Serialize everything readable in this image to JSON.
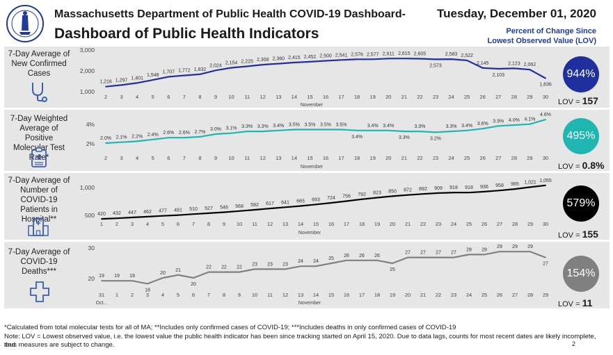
{
  "header": {
    "title_line1": "Massachusetts Department of Public Health COVID-19 Dashboard-",
    "title_line2": "Dashboard of Public Health Indicators",
    "date": "Tuesday, December 01, 2020",
    "pct_change_line1": "Percent of Change Since",
    "pct_change_line2": "Lowest Observed Value (LOV)"
  },
  "colors": {
    "cases": "#1f2f9e",
    "positivity": "#1fb5b0",
    "hospital": "#000000",
    "deaths": "#808080"
  },
  "chart_data": [
    {
      "type": "line",
      "label": "7-Day Average of New Confirmed Cases",
      "icon": "stethoscope-icon",
      "x": [
        "2",
        "3",
        "4",
        "5",
        "6",
        "7",
        "8",
        "9",
        "10",
        "11",
        "12",
        "13",
        "14",
        "15",
        "16",
        "17",
        "18",
        "19",
        "20",
        "21",
        "22",
        "23",
        "24",
        "25",
        "26",
        "27",
        "28",
        "29",
        "30"
      ],
      "values": [
        1216,
        1297,
        1401,
        1548,
        1707,
        1772,
        1832,
        2024,
        2154,
        2225,
        2308,
        2360,
        2415,
        2452,
        2500,
        2541,
        2576,
        2577,
        2611,
        2615,
        2605,
        2573,
        2583,
        2522,
        2145,
        2103,
        2123,
        2062,
        1636
      ],
      "value_labels": [
        "1,216",
        "1,297",
        "1,401",
        "1,548",
        "1,707",
        "1,772",
        "1,832",
        "2,024",
        "2,154",
        "2,225",
        "2,308",
        "2,360",
        "2,415",
        "2,452",
        "2,500",
        "2,541",
        "2,576",
        "2,577",
        "2,611",
        "2,615",
        "2,605",
        "2,573",
        "2,583",
        "2,522",
        "2,145",
        "2,103",
        "2,123",
        "2,062",
        "1,636"
      ],
      "yticks": [
        "3,000",
        "2,000",
        "1,000"
      ],
      "ylim": [
        1000,
        3000
      ],
      "month_label": "November",
      "pct_change": "944%",
      "lov_label": "LOV =",
      "lov_value": "157"
    },
    {
      "type": "line",
      "label": "7-Day Weighted Average of Positive Molecular Test Rate*",
      "icon": "clipboard-icon",
      "x": [
        "2",
        "3",
        "4",
        "5",
        "6",
        "7",
        "8",
        "9",
        "10",
        "11",
        "12",
        "13",
        "14",
        "15",
        "16",
        "17",
        "18",
        "19",
        "20",
        "21",
        "22",
        "23",
        "24",
        "25",
        "26",
        "27",
        "28",
        "29",
        "30"
      ],
      "values": [
        2.0,
        2.1,
        2.2,
        2.4,
        2.6,
        2.6,
        2.7,
        3.0,
        3.1,
        3.3,
        3.3,
        3.4,
        3.5,
        3.5,
        3.5,
        3.5,
        3.4,
        3.4,
        3.4,
        3.3,
        3.3,
        3.2,
        3.3,
        3.4,
        3.6,
        3.9,
        4.0,
        4.1,
        4.6
      ],
      "value_labels": [
        "2.0%",
        "2.1%",
        "2.2%",
        "2.4%",
        "2.6%",
        "2.6%",
        "2.7%",
        "3.0%",
        "3.1%",
        "3.3%",
        "3.3%",
        "3.4%",
        "3.5%",
        "3.5%",
        "3.5%",
        "3.5%",
        "3.4%",
        "3.4%",
        "3.4%",
        "3.3%",
        "3.3%",
        "3.2%",
        "3.3%",
        "3.4%",
        "3.6%",
        "3.9%",
        "4.0%",
        "4.1%",
        "4.6%"
      ],
      "yticks": [
        "4%",
        "2%"
      ],
      "ylim": [
        2,
        4
      ],
      "month_label": "November",
      "pct_change": "495%",
      "lov_label": "LOV =",
      "lov_value": "0.8%"
    },
    {
      "type": "line",
      "label": "7-Day Average of Number of COVID-19 Patients in Hospital**",
      "icon": "hospital-icon",
      "x": [
        "1",
        "2",
        "3",
        "4",
        "5",
        "6",
        "7",
        "8",
        "9",
        "10",
        "11",
        "12",
        "13",
        "14",
        "15",
        "16",
        "17",
        "18",
        "19",
        "20",
        "21",
        "22",
        "23",
        "24",
        "25",
        "26",
        "27",
        "28",
        "29",
        "30"
      ],
      "values": [
        420,
        432,
        447,
        462,
        477,
        491,
        510,
        527,
        546,
        568,
        592,
        617,
        641,
        665,
        693,
        724,
        756,
        792,
        823,
        850,
        872,
        892,
        909,
        918,
        918,
        936,
        958,
        985,
        1021,
        1055
      ],
      "value_labels": [
        "420",
        "432",
        "447",
        "462",
        "477",
        "491",
        "510",
        "527",
        "546",
        "568",
        "592",
        "617",
        "641",
        "665",
        "693",
        "724",
        "756",
        "792",
        "823",
        "850",
        "872",
        "892",
        "909",
        "918",
        "918",
        "936",
        "958",
        "985",
        "1,021",
        "1,055"
      ],
      "yticks": [
        "1,000",
        "500"
      ],
      "ylim": [
        500,
        1000
      ],
      "month_label": "November",
      "pct_change": "579%",
      "lov_label": "LOV =",
      "lov_value": "155"
    },
    {
      "type": "line",
      "label": "7-Day Average of COVID-19 Deaths***",
      "icon": "cross-icon",
      "x": [
        "31",
        "1",
        "2",
        "3",
        "4",
        "5",
        "6",
        "7",
        "8",
        "9",
        "10",
        "11",
        "12",
        "13",
        "14",
        "15",
        "16",
        "17",
        "18",
        "19",
        "20",
        "21",
        "22",
        "23",
        "24",
        "25",
        "26",
        "27",
        "28",
        "29"
      ],
      "values": [
        19,
        19,
        19,
        18,
        20,
        21,
        20,
        22,
        22,
        22,
        23,
        23,
        23,
        24,
        24,
        25,
        26,
        26,
        26,
        25,
        27,
        27,
        27,
        27,
        28,
        28,
        29,
        29,
        29,
        27
      ],
      "value_labels": [
        "19",
        "19",
        "19",
        "18",
        "20",
        "21",
        "20",
        "22",
        "22",
        "22",
        "23",
        "23",
        "23",
        "24",
        "24",
        "25",
        "26",
        "26",
        "26",
        "25",
        "27",
        "27",
        "27",
        "27",
        "28",
        "28",
        "29",
        "29",
        "29",
        "27"
      ],
      "yticks": [
        "30",
        "20"
      ],
      "ylim": [
        20,
        30
      ],
      "month_label": "November",
      "first_month_label": "Oct...",
      "pct_change": "154%",
      "lov_label": "LOV =",
      "lov_value": "11"
    }
  ],
  "footer": {
    "line1": "*Calculated from total molecular tests for all of MA; **Includes only confirmed cases of COVID-19; ***Includes deaths in only confirmed cases of COVID-19",
    "line2": "Note:  LOV = Lowest observed value, i.e. the lowest value the public health indicator has been since tracking started on April 15, 2020. Due to data lags, counts for most recent dates are likely incomplete, and",
    "line3": "thus measures are subject to change.",
    "page": "2"
  }
}
